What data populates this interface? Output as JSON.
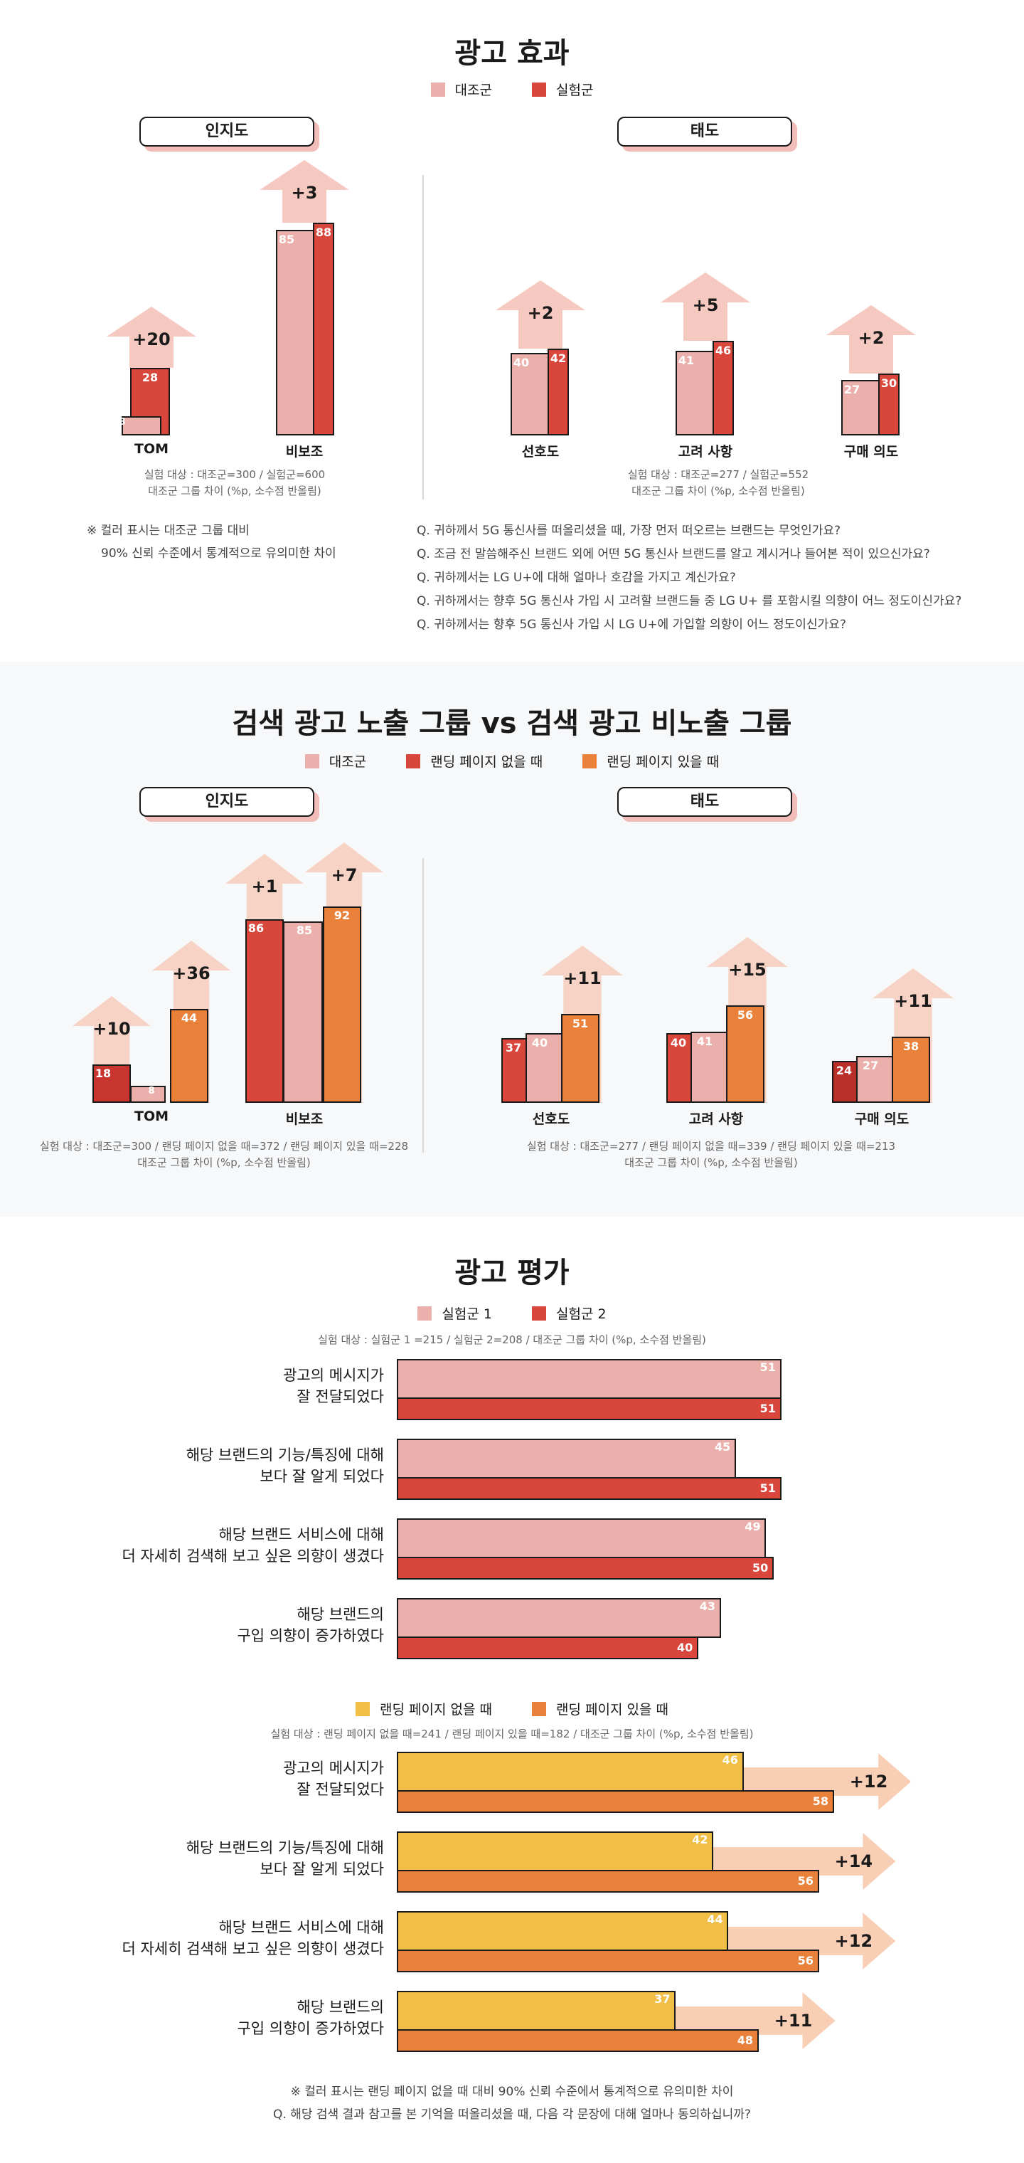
{
  "colors": {
    "control": "#ebb0ab",
    "test": "#d9473c",
    "no_landing": "#c8352f",
    "with_landing": "#e9813a",
    "arrow": "#f5c9c0",
    "arrow_light": "#f7d3c5",
    "yellow": "#f1bf45",
    "orange": "#e9813a",
    "pill_shadow": "#f2bcb8",
    "wide_arrow": "#f8cfb4"
  },
  "section1": {
    "title": "광고 효과",
    "legend": [
      {
        "label": "대조군",
        "color": "#ebb0ab"
      },
      {
        "label": "실험군",
        "color": "#d9473c"
      }
    ],
    "pill_left": "인지도",
    "pill_right": "태도",
    "note_left": [
      "실험 대상 : 대조군=300 / 실험군=600",
      "대조군 그룹 차이 (%p, 소수점 반올림)"
    ],
    "note_right": [
      "실험 대상 : 대조군=277 / 실험군=552",
      "대조군 그룹 차이 (%p, 소수점 반올림)"
    ],
    "footnote": [
      "※ 컬러 표시는 대조군 그룹 대비",
      "90% 신뢰 수준에서 통계적으로 유의미한 차이"
    ],
    "questions": [
      "Q. 귀하께서 5G 통신사를 떠올리셨을 때, 가장 먼저 떠오르는 브랜드는 무엇인가요?",
      "Q. 조금 전 말씀해주신 브랜드 외에 어떤 5G 통신사 브랜드를  알고 계시거나 들어본 적이 있으신가요?",
      "Q. 귀하께서는 LG U+에 대해 얼마나 호감을 가지고 계신가요?",
      "Q. 귀하께서는 향후 5G 통신사 가입 시 고려할 브랜드들 중 LG U+ 를 포함시킬 의향이 어느 정도이신가요?",
      "Q. 귀하께서는 향후 5G 통신사 가입 시 LG U+에 가입할 의향이 어느 정도이신가요?"
    ]
  },
  "section2": {
    "title": "검색 광고 노출 그룹 vs 검색 광고 비노출 그룹",
    "legend": [
      {
        "label": "대조군",
        "color": "#ebb0ab"
      },
      {
        "label": "랜딩 페이지 없을 때",
        "color": "#d9473c"
      },
      {
        "label": "랜딩 페이지 있을 때",
        "color": "#e9813a"
      }
    ],
    "pill_left": "인지도",
    "pill_right": "태도",
    "note_left": [
      "실험 대상 : 대조군=300 / 랜딩 페이지 없을 때=372 / 랜딩 페이지 있을 때=228",
      "대조군 그룹 차이 (%p, 소수점 반올림)"
    ],
    "note_right": [
      "실험 대상 : 대조군=277 / 랜딩 페이지 없을 때=339 / 랜딩 페이지 있을 때=213",
      "대조군 그룹 차이 (%p, 소수점 반올림)"
    ]
  },
  "section3": {
    "title": "광고 평가",
    "legend1": [
      {
        "label": "실험군 1",
        "color": "#ebb0ab"
      },
      {
        "label": "실험군 2",
        "color": "#d9473c"
      }
    ],
    "note1": "실험 대상 : 실험군 1 =215 / 실험군 2=208 / 대조군 그룹 차이 (%p, 소수점 반올림)",
    "legend2": [
      {
        "label": "랜딩 페이지 없을 때",
        "color": "#f1bf45"
      },
      {
        "label": "랜딩 페이지 있을 때",
        "color": "#e9813a"
      }
    ],
    "note2": "실험 대상 : 랜딩 페이지 없을 때=241 / 랜딩 페이지 있을 때=182 / 대조군 그룹 차이 (%p, 소수점 반올림)",
    "footnote": [
      "※ 컬러 표시는 랜딩 페이지 없을 때 대비 90% 신뢰 수준에서 통계적으로 유의미한 차이",
      "Q. 해당 검색 결과 참고를 본 기억을 떠올리셨을 때, 다음 각 문장에 대해 얼마나 동의하십니까?"
    ]
  },
  "chart_data": [
    {
      "type": "bar",
      "series": [
        {
          "name": "대조군",
          "values": [
            8,
            85
          ]
        },
        {
          "name": "실험군",
          "values": [
            28,
            88
          ]
        }
      ],
      "categories": [
        "TOM",
        "비보조"
      ],
      "diffs": [
        "+20",
        "+3"
      ]
    },
    {
      "type": "bar",
      "series": [
        {
          "name": "대조군",
          "values": [
            40,
            41,
            27
          ]
        },
        {
          "name": "실험군",
          "values": [
            42,
            46,
            30
          ]
        }
      ],
      "categories": [
        "선호도",
        "고려 사항",
        "구매 의도"
      ],
      "diffs": [
        "+2",
        "+5",
        "+2"
      ]
    },
    {
      "type": "bar",
      "series": [
        {
          "name": "랜딩 페이지 없을 때",
          "values": [
            18,
            86
          ]
        },
        {
          "name": "대조군",
          "values": [
            8,
            85
          ]
        },
        {
          "name": "랜딩 페이지 있을 때",
          "values": [
            44,
            92
          ]
        }
      ],
      "categories": [
        "TOM",
        "비보조"
      ],
      "diffs_no_landing": [
        "+10",
        "+1"
      ],
      "diffs_with_landing": [
        "+36",
        "+7"
      ]
    },
    {
      "type": "bar",
      "series": [
        {
          "name": "랜딩 페이지 없을 때",
          "values": [
            37,
            40,
            24
          ]
        },
        {
          "name": "대조군",
          "values": [
            40,
            41,
            27
          ]
        },
        {
          "name": "랜딩 페이지 있을 때",
          "values": [
            51,
            56,
            38
          ]
        }
      ],
      "categories": [
        "선호도",
        "고려 사항",
        "구매 의도"
      ],
      "diffs_with_landing": [
        "+11",
        "+15",
        "+11"
      ]
    },
    {
      "type": "bar",
      "orientation": "horizontal",
      "categories": [
        [
          "광고의 메시지가",
          "잘 전달되었다"
        ],
        [
          "해당 브랜드의 기능/특징에 대해",
          "보다 잘 알게 되었다"
        ],
        [
          "해당 브랜드 서비스에 대해",
          "더 자세히 검색해 보고 싶은 의향이 생겼다"
        ],
        [
          "해당 브랜드의",
          "구입 의향이 증가하였다"
        ]
      ],
      "series": [
        {
          "name": "실험군 1",
          "values": [
            51,
            45,
            49,
            43
          ]
        },
        {
          "name": "실험군 2",
          "values": [
            51,
            51,
            50,
            40
          ]
        }
      ]
    },
    {
      "type": "bar",
      "orientation": "horizontal",
      "categories": [
        [
          "광고의 메시지가",
          "잘 전달되었다"
        ],
        [
          "해당 브랜드의 기능/특징에 대해",
          "보다 잘 알게 되었다"
        ],
        [
          "해당 브랜드 서비스에 대해",
          "더 자세히 검색해 보고 싶은 의향이 생겼다"
        ],
        [
          "해당 브랜드의",
          "구입 의향이 증가하였다"
        ]
      ],
      "series": [
        {
          "name": "랜딩 페이지 없을 때",
          "values": [
            46,
            42,
            44,
            37
          ]
        },
        {
          "name": "랜딩 페이지 있을 때",
          "values": [
            58,
            56,
            56,
            48
          ]
        }
      ],
      "diffs": [
        "+12",
        "+14",
        "+12",
        "+11"
      ]
    }
  ]
}
